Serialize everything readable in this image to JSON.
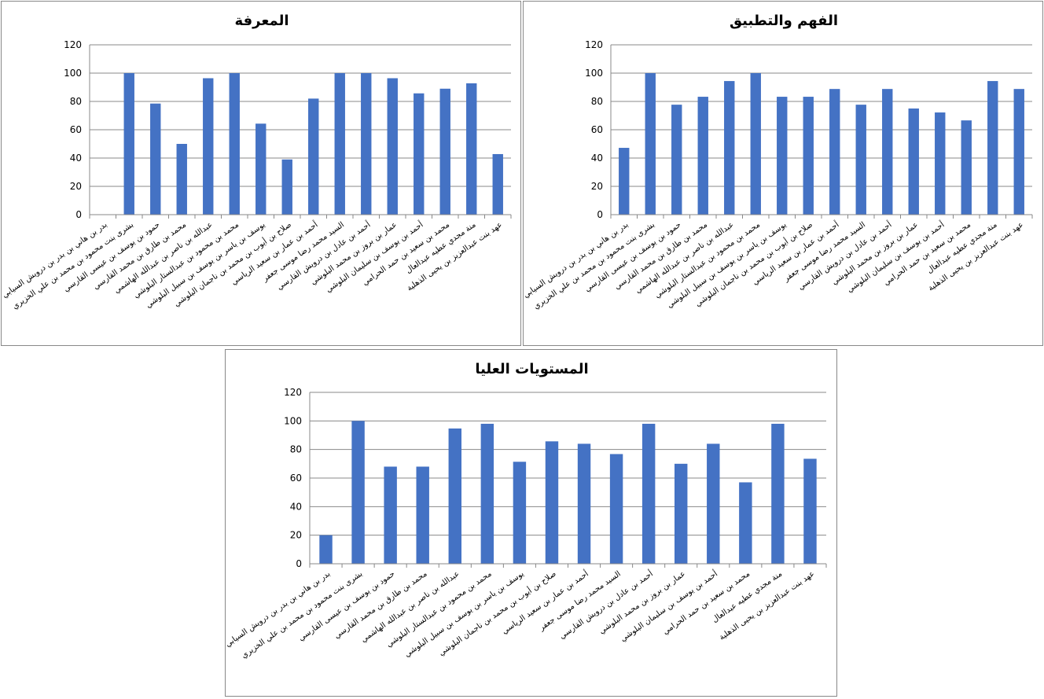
{
  "colors": {
    "bar": "#4472C4",
    "grid": "#888888",
    "axis": "#888888"
  },
  "chart_data": [
    {
      "type": "bar",
      "title": "المعرفة",
      "ylim": [
        0,
        120
      ],
      "yticks": [
        0,
        20,
        40,
        60,
        80,
        100,
        120
      ],
      "grid": true,
      "legend": "none",
      "categories": [
        "بدر بن هاني بن بدر بن درويش السيابي",
        "بشرى بنت محمود بن محمد بن علي الخزيري",
        "حمود بن يوسف بن عيسى القارسي",
        "محمد بن طارق بن محمد القارسي",
        "عبدالله بن ناصر بن عبدالله الهاشمي",
        "محمد بن محمود بن عبدالستار البلوشي",
        "يوسف بن ياسر بن يوسف بن سبيل البلوشي",
        "صلاح بن أيوب بن محمد بن ناجمان البلوشي",
        "أحمد بن عمار بن سعيد الرياسي",
        "السيد محمد رضا موسى جعفر",
        "أحمد بن عادل بن درويش القارسي",
        "عمار بن بروز بن محمد البلوشي",
        "أحمد بن يوسف بن سليمان البلوشي",
        "محمد بن سعيد بن حمد الحرامي",
        "منة مجدي عطيه عبدالعال",
        "عهد بنت عبدالعزيز بن يحيى الذهلية"
      ],
      "values": [
        0,
        100,
        78.5,
        50,
        96.4,
        100,
        64.3,
        39,
        82,
        100,
        100,
        96.4,
        85.7,
        89,
        92.8,
        42.8
      ]
    },
    {
      "type": "bar",
      "title": "الفهم والتطبيق",
      "ylim": [
        0,
        120
      ],
      "yticks": [
        0,
        20,
        40,
        60,
        80,
        100,
        120
      ],
      "grid": true,
      "legend": "none",
      "categories": [
        "بدر بن هاني بن بدر بن درويش السيابي",
        "بشرى بنت محمود بن محمد بن علي الخزيري",
        "حمود بن يوسف بن عيسى القارسي",
        "محمد بن طارق بن محمد القارسي",
        "عبدالله بن ناصر بن عبدالله الهاشمي",
        "محمد بن محمود بن عبدالستار البلوشي",
        "يوسف بن ياسر بن يوسف بن سبيل البلوشي",
        "صلاح بن أيوب بن محمد بن ناجمان البلوشي",
        "أحمد بن عمار بن سعيد الرياسي",
        "السيد محمد رضا موسى جعفر",
        "أحمد بن عادل بن درويش القارسي",
        "عمار بن بروز بن محمد البلوشي",
        "أحمد بن يوسف بن سليمان البلوشي",
        "محمد بن سعيد بن حمد الحرامي",
        "منة مجدي عطيه عبدالعال",
        "عهد بنت عبدالعزيز بن يحيى الذهلية"
      ],
      "values": [
        47.2,
        100,
        77.7,
        83.3,
        94.4,
        100,
        83.3,
        83.3,
        88.8,
        77.7,
        88.8,
        75,
        72.2,
        66.6,
        94.4,
        88.8
      ]
    },
    {
      "type": "bar",
      "title": "المستويات العليا",
      "ylim": [
        0,
        120
      ],
      "yticks": [
        0,
        20,
        40,
        60,
        80,
        100,
        120
      ],
      "grid": true,
      "legend": "none",
      "categories": [
        "بدر بن هاني بن بدر بن درويش السيابي",
        "بشرى بنت محمود بن محمد بن علي الخزيري",
        "حمود بن يوسف بن عيسى القارسي",
        "محمد بن طارق بن محمد القارسي",
        "عبدالله بن ناصر بن عبدالله الهاشمي",
        "محمد بن محمود بن عبدالستار البلوشي",
        "يوسف بن ياسر بن يوسف بن سبيل البلوشي",
        "صلاح بن أيوب بن محمد بن ناجمان البلوشي",
        "أحمد بن عمار بن سعيد الرياسي",
        "السيد محمد رضا موسى جعفر",
        "أحمد بن عادل بن درويش القارسي",
        "عمار بن بروز بن محمد البلوشي",
        "أحمد بن يوسف بن سليمان البلوشي",
        "محمد بن سعيد بن حمد الحرامي",
        "منة مجدي عطيه عبدالعال",
        "عهد بنت عبدالعزيز بن يحيى الذهلية"
      ],
      "values": [
        20,
        100,
        68,
        68,
        94.7,
        98,
        71.4,
        85.7,
        84,
        76.8,
        98,
        70,
        84,
        57,
        98,
        73.5
      ]
    }
  ]
}
